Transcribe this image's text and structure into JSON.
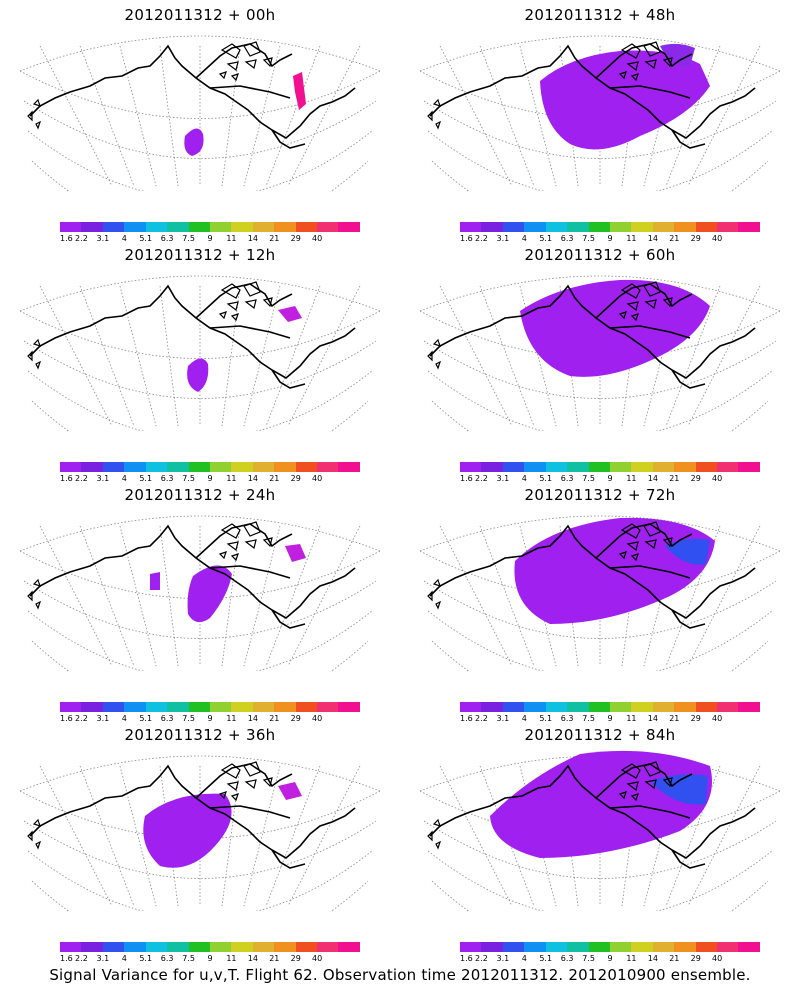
{
  "base_run": "2012011312",
  "panels": [
    {
      "title": "2012011312 + 00h",
      "lead": "00h"
    },
    {
      "title": "2012011312 + 48h",
      "lead": "48h"
    },
    {
      "title": "2012011312 + 12h",
      "lead": "12h"
    },
    {
      "title": "2012011312 + 60h",
      "lead": "60h"
    },
    {
      "title": "2012011312 + 24h",
      "lead": "24h"
    },
    {
      "title": "2012011312 + 72h",
      "lead": "72h"
    },
    {
      "title": "2012011312 + 36h",
      "lead": "36h"
    },
    {
      "title": "2012011312 + 84h",
      "lead": "84h"
    }
  ],
  "colorbar": {
    "labels": [
      "1.6",
      "2.2",
      "3.1",
      "4",
      "5.1",
      "6.3",
      "7.5",
      "9",
      "11",
      "14",
      "21",
      "29",
      "40"
    ],
    "colors": [
      "#a020f0",
      "#7a20e0",
      "#3050f0",
      "#1090f0",
      "#10c0e0",
      "#10c0a0",
      "#20c020",
      "#90d030",
      "#d0d020",
      "#e0b030",
      "#f09020",
      "#f05020",
      "#f03070",
      "#f01090"
    ]
  },
  "caption": "Signal Variance for u,v,T. Flight 62. Observation time 2012011312. 2012010900 ensemble."
}
